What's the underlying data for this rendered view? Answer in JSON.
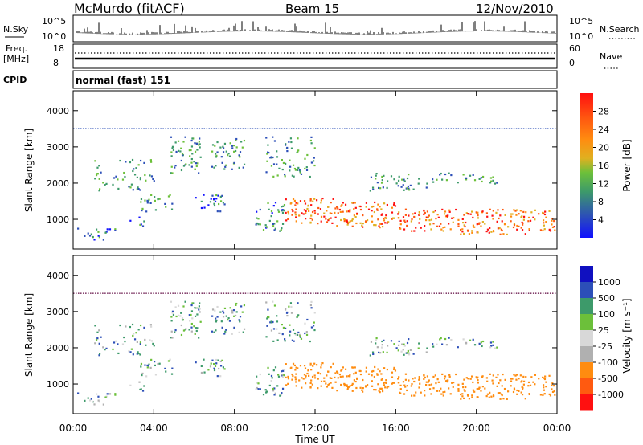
{
  "header": {
    "station": "McMurdo (fitACF)",
    "beam": "Beam 15",
    "date": "12/Nov/2010"
  },
  "sky_panel": {
    "left_label": "N.Sky",
    "left_ticks": [
      "10^5",
      "10^0"
    ],
    "right_ticks": [
      "10^5",
      "10^0"
    ],
    "right_label": "N.Search"
  },
  "freq_panel": {
    "left_label_1": "Freq.",
    "left_label_2": "[MHz]",
    "left_ticks": [
      "18",
      "8"
    ],
    "right_ticks": [
      "60",
      "0"
    ],
    "right_label": "Nave"
  },
  "cpid": {
    "label": "CPID",
    "value": "normal (fast) 151"
  },
  "colors": {
    "power": [
      "#1010ff",
      "#2c4fb8",
      "#3d9a6a",
      "#6cc03a",
      "#e0b020",
      "#ff8c10",
      "#ff5a10",
      "#ff1010"
    ],
    "velocity": [
      "#ff1010",
      "#ff5a10",
      "#ff8c10",
      "#b0b0b0",
      "#d8d8d8",
      "#6cc03a",
      "#3d9a6a",
      "#2c4fb8",
      "#1010c0"
    ]
  },
  "chart_data": [
    {
      "type": "heatmap",
      "panel": "power",
      "ylabel": "Slant Range [km]",
      "yticks": [
        1000,
        2000,
        3000,
        4000
      ],
      "ylim": [
        180,
        4550
      ],
      "xlim": [
        0,
        24
      ],
      "colorbar_label": "Power [dB]",
      "colorbar_ticks": [
        "4",
        "8",
        "12",
        "16",
        "20",
        "24",
        "28"
      ]
    },
    {
      "type": "heatmap",
      "panel": "velocity",
      "ylabel": "Slant Range [km]",
      "yticks": [
        1000,
        2000,
        3000,
        4000
      ],
      "ylim": [
        180,
        4550
      ],
      "xlim": [
        0,
        24
      ],
      "colorbar_label": "Velocity [m s⁻¹]",
      "colorbar_ticks": [
        "1000",
        "500",
        "100",
        "25",
        "-25",
        "-100",
        "-500",
        "-1000"
      ],
      "xticks": [
        "00:00",
        "04:00",
        "08:00",
        "12:00",
        "16:00",
        "20:00",
        "00:00"
      ],
      "xlabel": "Time UT"
    }
  ]
}
